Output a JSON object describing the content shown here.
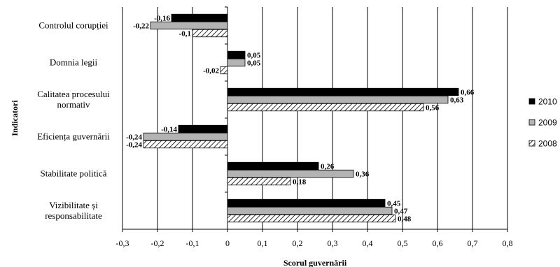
{
  "chart_data": {
    "type": "bar",
    "orientation": "horizontal",
    "categories": [
      "Controlul corupției",
      "Domnia legii",
      "Calitatea procesului normativ",
      "Eficiența guvernării",
      "Stabilitate politică",
      "Vizibilitate și responsabilitate"
    ],
    "category_lines": [
      [
        "Controlul corupției"
      ],
      [
        "Domnia legii"
      ],
      [
        "Calitatea procesului",
        "normativ"
      ],
      [
        "Eficiența guvernării"
      ],
      [
        "Stabilitate politică"
      ],
      [
        "Vizibilitate și",
        "responsabilitate"
      ]
    ],
    "series": [
      {
        "name": "2010",
        "values": [
          -0.16,
          0.05,
          0.66,
          -0.14,
          0.26,
          0.45
        ],
        "labels": [
          "-0,16",
          "0,05",
          "0,66",
          "-0,14",
          "0,26",
          "0,45"
        ],
        "fill": "solid",
        "color": "#000000"
      },
      {
        "name": "2009",
        "values": [
          -0.22,
          0.05,
          0.63,
          -0.24,
          0.36,
          0.47
        ],
        "labels": [
          "-0,22",
          "0,05",
          "0,63",
          "-0,24",
          "0,36",
          "0,47"
        ],
        "fill": "solid",
        "color": "#b3b3b3"
      },
      {
        "name": "2008",
        "values": [
          -0.1,
          -0.02,
          0.56,
          -0.24,
          0.18,
          0.48
        ],
        "labels": [
          "-0,1",
          "-0,02",
          "0,56",
          "-0,24",
          "0,18",
          "0,48"
        ],
        "fill": "hatch",
        "color": "#ffffff"
      }
    ],
    "xlim": [
      -0.3,
      0.8
    ],
    "xticks": [
      -0.3,
      -0.2,
      -0.1,
      0,
      0.1,
      0.2,
      0.3,
      0.4,
      0.5,
      0.6,
      0.7,
      0.8
    ],
    "xtick_labels": [
      "-0,3",
      "-0,2",
      "-0,1",
      "0",
      "0,1",
      "0,2",
      "0,3",
      "0,4",
      "0,5",
      "0,6",
      "0,7",
      "0,8"
    ],
    "xlabel": "Scorul guvernării",
    "ylabel": "Indicatori",
    "grid": "vertical",
    "legend_position": "right"
  }
}
